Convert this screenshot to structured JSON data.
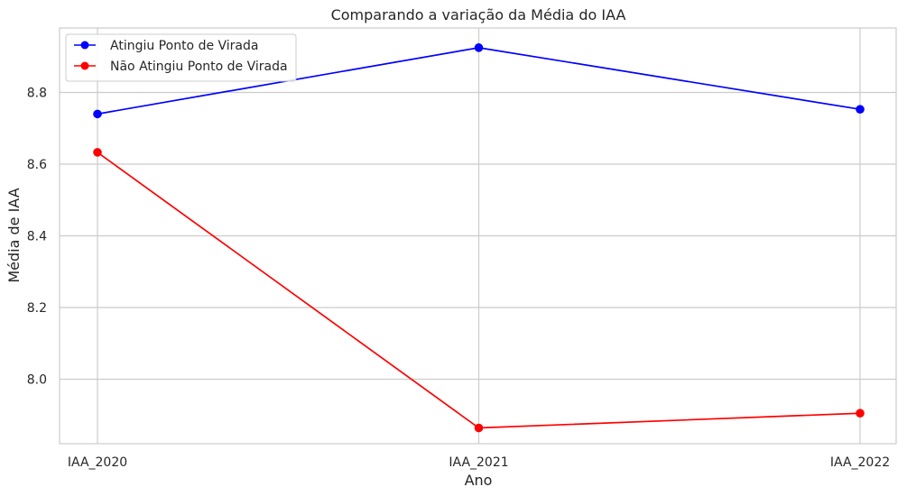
{
  "chart_data": {
    "type": "line",
    "title": "Comparando a variação da Média do IAA",
    "xlabel": "Ano",
    "ylabel": "Média de IAA",
    "categories": [
      "IAA_2020",
      "IAA_2021",
      "IAA_2022"
    ],
    "series": [
      {
        "name": "Atingiu Ponto de Virada",
        "color": "#0000ff",
        "values": [
          8.74,
          8.925,
          8.753
        ]
      },
      {
        "name": "Não Atingiu Ponto de Virada",
        "color": "#ff0000",
        "values": [
          8.633,
          7.864,
          7.905
        ]
      }
    ],
    "yticks": [
      "8.0",
      "8.2",
      "8.4",
      "8.6",
      "8.8"
    ],
    "ylim": [
      7.82,
      8.98
    ],
    "grid": true,
    "legend_position": "top-left"
  }
}
